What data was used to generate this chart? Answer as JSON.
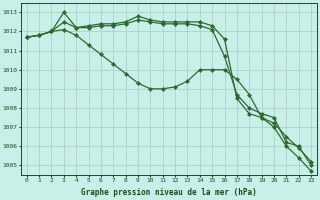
{
  "x": [
    0,
    1,
    2,
    3,
    4,
    5,
    6,
    7,
    8,
    9,
    10,
    11,
    12,
    13,
    14,
    15,
    16,
    17,
    18,
    19,
    20,
    21,
    22,
    23
  ],
  "line1": [
    1011.7,
    1011.8,
    1012.0,
    1013.0,
    1012.2,
    1012.3,
    1012.4,
    1012.4,
    1012.5,
    1012.8,
    1012.6,
    1012.5,
    1012.5,
    1012.5,
    1012.5,
    1012.3,
    1011.6,
    1008.5,
    1007.7,
    1007.5,
    1007.2,
    1006.5,
    1005.9,
    1005.2
  ],
  "line2": [
    1011.7,
    1011.8,
    1012.0,
    1012.5,
    1012.2,
    1012.2,
    1012.3,
    1012.3,
    1012.4,
    1012.6,
    1012.5,
    1012.4,
    1012.4,
    1012.4,
    1012.3,
    1012.1,
    1010.7,
    1008.7,
    1008.0,
    1007.7,
    1007.5,
    1006.2,
    1006.0,
    1005.0
  ],
  "line3": [
    1011.7,
    1011.8,
    1012.0,
    1012.1,
    1011.8,
    1011.3,
    1010.8,
    1010.3,
    1009.8,
    1009.3,
    1009.0,
    1009.0,
    1009.1,
    1009.4,
    1010.0,
    1010.0,
    1010.0,
    1009.5,
    1008.7,
    1007.5,
    1007.0,
    1006.0,
    1005.4,
    1004.7
  ],
  "ylim_min": 1004.5,
  "ylim_max": 1013.5,
  "yticks": [
    1005,
    1006,
    1007,
    1008,
    1009,
    1010,
    1011,
    1012,
    1013
  ],
  "xticks": [
    0,
    1,
    2,
    3,
    4,
    5,
    6,
    7,
    8,
    9,
    10,
    11,
    12,
    13,
    14,
    15,
    16,
    17,
    18,
    19,
    20,
    21,
    22,
    23
  ],
  "line_color": "#2d6a2d",
  "bg_color": "#c8f0e8",
  "grid_color": "#a8ccc4",
  "xlabel": "Graphe pression niveau de la mer (hPa)",
  "label_color": "#1a4a1a",
  "marker": "D",
  "marker_size": 2.0,
  "line_width": 0.9
}
